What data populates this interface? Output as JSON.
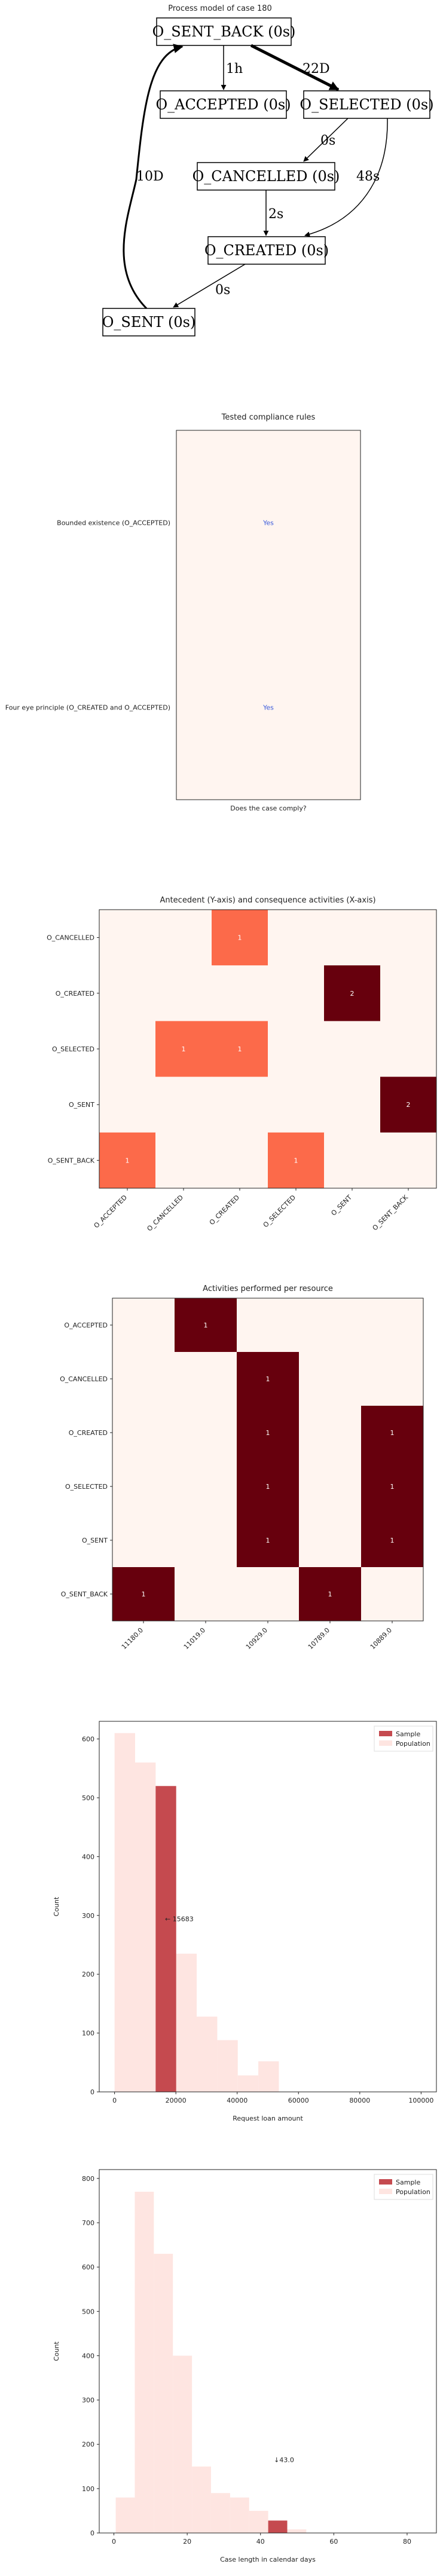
{
  "process_model": {
    "title": "Process model of case 180",
    "nodes": [
      {
        "id": "sent_back",
        "label": "O_SENT_BACK (0s)"
      },
      {
        "id": "accepted",
        "label": "O_ACCEPTED (0s)"
      },
      {
        "id": "selected",
        "label": "O_SELECTED (0s)"
      },
      {
        "id": "cancelled",
        "label": "O_CANCELLED (0s)"
      },
      {
        "id": "created",
        "label": "O_CREATED (0s)"
      },
      {
        "id": "sent",
        "label": "O_SENT (0s)"
      }
    ],
    "edges": [
      {
        "from": "sent_back",
        "to": "accepted",
        "label": "1h"
      },
      {
        "from": "sent_back",
        "to": "selected",
        "label": "22D"
      },
      {
        "from": "selected",
        "to": "cancelled",
        "label": "0s"
      },
      {
        "from": "selected",
        "to": "created",
        "label": "48s"
      },
      {
        "from": "cancelled",
        "to": "created",
        "label": "2s"
      },
      {
        "from": "created",
        "to": "sent",
        "label": "0s"
      },
      {
        "from": "sent",
        "to": "sent_back",
        "label": "10D"
      }
    ]
  },
  "chart_data": [
    {
      "type": "table",
      "title": "Tested compliance rules",
      "xlabel": "Does the case comply?",
      "rows": [
        "Bounded existence (O_ACCEPTED)",
        "Four eye principle (O_CREATED and O_ACCEPTED)"
      ],
      "values": [
        "Yes",
        "Yes"
      ],
      "colors": {
        "cell": "#fff5f0",
        "value": "#3b5bdb"
      }
    },
    {
      "type": "heatmap",
      "title": "Antecedent (Y-axis) and consequence activities (X-axis)",
      "x": [
        "O_ACCEPTED",
        "O_CANCELLED",
        "O_CREATED",
        "O_SELECTED",
        "O_SENT",
        "O_SENT_BACK"
      ],
      "y": [
        "O_CANCELLED",
        "O_CREATED",
        "O_SELECTED",
        "O_SENT",
        "O_SENT_BACK"
      ],
      "values": [
        [
          0,
          0,
          1,
          0,
          0,
          0
        ],
        [
          0,
          0,
          0,
          0,
          2,
          0
        ],
        [
          0,
          1,
          1,
          0,
          0,
          0
        ],
        [
          0,
          0,
          0,
          0,
          0,
          2
        ],
        [
          1,
          0,
          0,
          1,
          0,
          0
        ]
      ],
      "max": 2
    },
    {
      "type": "heatmap",
      "title": "Activities performed per resource",
      "x": [
        "11180.0",
        "11019.0",
        "10929.0",
        "10789.0",
        "10889.0"
      ],
      "y": [
        "O_ACCEPTED",
        "O_CANCELLED",
        "O_CREATED",
        "O_SELECTED",
        "O_SENT",
        "O_SENT_BACK"
      ],
      "values": [
        [
          0,
          1,
          0,
          0,
          0
        ],
        [
          0,
          0,
          1,
          0,
          0
        ],
        [
          0,
          0,
          1,
          0,
          1
        ],
        [
          0,
          0,
          1,
          0,
          1
        ],
        [
          0,
          0,
          1,
          0,
          1
        ],
        [
          1,
          0,
          0,
          1,
          0
        ]
      ],
      "max": 1
    },
    {
      "type": "bar",
      "title": "",
      "xlabel": "Request loan amount",
      "ylabel": "Count",
      "xlim": [
        -5000,
        105000
      ],
      "ylim": [
        0,
        630
      ],
      "xticks": [
        0,
        20000,
        40000,
        60000,
        80000,
        100000
      ],
      "yticks": [
        0,
        100,
        200,
        300,
        400,
        500,
        600
      ],
      "bin_width": 6700,
      "series": [
        {
          "name": "Population",
          "color": "#fee5e1",
          "bins": [
            [
              0,
              610
            ],
            [
              6700,
              560
            ],
            [
              13400,
              390
            ],
            [
              20100,
              235
            ],
            [
              26800,
              128
            ],
            [
              33500,
              88
            ],
            [
              40200,
              28
            ],
            [
              46900,
              52
            ]
          ]
        },
        {
          "name": "Sample",
          "color": "#c54a4f",
          "bins": [
            [
              13400,
              520
            ]
          ]
        }
      ],
      "annotation": {
        "text": "← 15683",
        "x": 15683,
        "y": 290
      },
      "legend": "top-right"
    },
    {
      "type": "bar",
      "title": "",
      "xlabel": "Case length in calendar days",
      "ylabel": "Count",
      "xlim": [
        -4,
        88
      ],
      "ylim": [
        0,
        820
      ],
      "xticks": [
        0,
        20,
        40,
        60,
        80
      ],
      "yticks": [
        0,
        100,
        200,
        300,
        400,
        500,
        600,
        700,
        800
      ],
      "bin_width": 5.2,
      "series": [
        {
          "name": "Population",
          "color": "#fee5e1",
          "bins": [
            [
              0.5,
              80
            ],
            [
              5.7,
              770
            ],
            [
              10.9,
              630
            ],
            [
              16.1,
              400
            ],
            [
              21.3,
              150
            ],
            [
              26.5,
              90
            ],
            [
              31.7,
              80
            ],
            [
              36.9,
              50
            ],
            [
              42.1,
              18
            ],
            [
              47.3,
              8
            ]
          ]
        },
        {
          "name": "Sample",
          "color": "#c54a4f",
          "bins": [
            [
              42.1,
              28
            ]
          ]
        }
      ],
      "annotation": {
        "text": "↓43.0",
        "x": 43.0,
        "y": 160
      },
      "legend": "top-right"
    }
  ]
}
